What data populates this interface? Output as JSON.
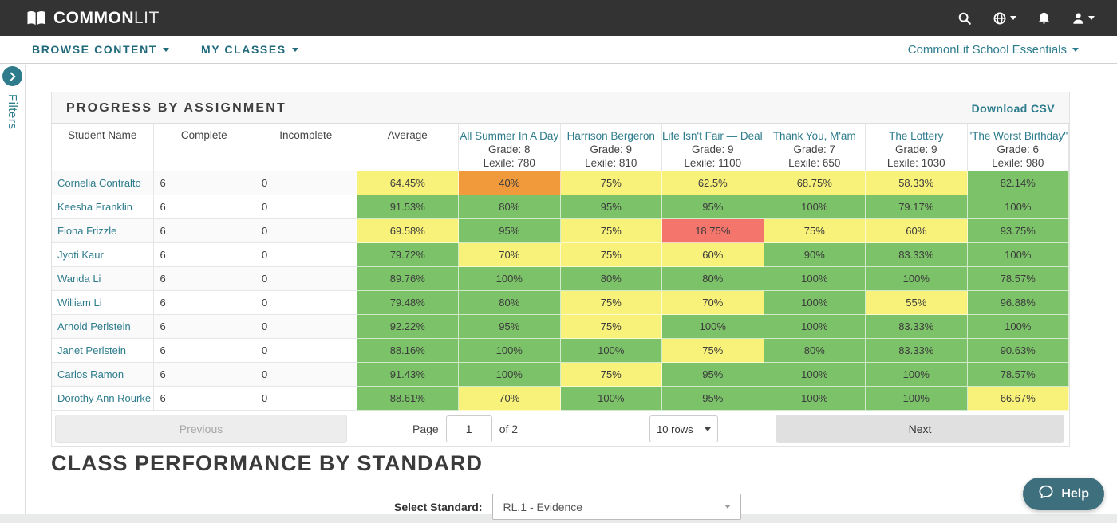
{
  "topbar": {
    "logo_common": "COMMON",
    "logo_lit": "LIT"
  },
  "nav": {
    "browse": "BROWSE CONTENT",
    "classes": "MY CLASSES",
    "school": "CommonLit School Essentials"
  },
  "filters": {
    "label": "Filters"
  },
  "panel": {
    "title": "PROGRESS BY ASSIGNMENT",
    "download_csv": "Download CSV",
    "table": {
      "static_headers": [
        "Student Name",
        "Complete",
        "Incomplete",
        "Average"
      ],
      "assignments": [
        {
          "title": "All Summer In A Day",
          "grade": "Grade:  8",
          "lexile": "Lexile:  780"
        },
        {
          "title": "Harrison Bergeron",
          "grade": "Grade:  9",
          "lexile": "Lexile:  810"
        },
        {
          "title": "Life Isn't Fair — Deal V",
          "grade": "Grade:  9",
          "lexile": "Lexile:  1100"
        },
        {
          "title": "Thank You, M'am",
          "grade": "Grade:  7",
          "lexile": "Lexile:  650"
        },
        {
          "title": "The Lottery",
          "grade": "Grade:  9",
          "lexile": "Lexile:  1030"
        },
        {
          "title": "\"The Worst Birthday\"",
          "grade": "Grade:  6",
          "lexile": "Lexile:  980"
        }
      ],
      "rows": [
        {
          "name": "Cornelia Contralto",
          "complete": "6",
          "incomplete": "0",
          "average": {
            "value": "64.45%",
            "color": "yellow"
          },
          "scores": [
            {
              "value": "40%",
              "color": "orange"
            },
            {
              "value": "75%",
              "color": "yellow"
            },
            {
              "value": "62.5%",
              "color": "yellow"
            },
            {
              "value": "68.75%",
              "color": "yellow"
            },
            {
              "value": "58.33%",
              "color": "yellow"
            },
            {
              "value": "82.14%",
              "color": "green"
            }
          ]
        },
        {
          "name": "Keesha Franklin",
          "complete": "6",
          "incomplete": "0",
          "average": {
            "value": "91.53%",
            "color": "green"
          },
          "scores": [
            {
              "value": "80%",
              "color": "green"
            },
            {
              "value": "95%",
              "color": "green"
            },
            {
              "value": "95%",
              "color": "green"
            },
            {
              "value": "100%",
              "color": "green"
            },
            {
              "value": "79.17%",
              "color": "green"
            },
            {
              "value": "100%",
              "color": "green"
            }
          ]
        },
        {
          "name": "Fiona Frizzle",
          "complete": "6",
          "incomplete": "0",
          "average": {
            "value": "69.58%",
            "color": "yellow"
          },
          "scores": [
            {
              "value": "95%",
              "color": "green"
            },
            {
              "value": "75%",
              "color": "yellow"
            },
            {
              "value": "18.75%",
              "color": "red"
            },
            {
              "value": "75%",
              "color": "yellow"
            },
            {
              "value": "60%",
              "color": "yellow"
            },
            {
              "value": "93.75%",
              "color": "green"
            }
          ]
        },
        {
          "name": "Jyoti Kaur",
          "complete": "6",
          "incomplete": "0",
          "average": {
            "value": "79.72%",
            "color": "green"
          },
          "scores": [
            {
              "value": "70%",
              "color": "yellow"
            },
            {
              "value": "75%",
              "color": "yellow"
            },
            {
              "value": "60%",
              "color": "yellow"
            },
            {
              "value": "90%",
              "color": "green"
            },
            {
              "value": "83.33%",
              "color": "green"
            },
            {
              "value": "100%",
              "color": "green"
            }
          ]
        },
        {
          "name": "Wanda Li",
          "complete": "6",
          "incomplete": "0",
          "average": {
            "value": "89.76%",
            "color": "green"
          },
          "scores": [
            {
              "value": "100%",
              "color": "green"
            },
            {
              "value": "80%",
              "color": "green"
            },
            {
              "value": "80%",
              "color": "green"
            },
            {
              "value": "100%",
              "color": "green"
            },
            {
              "value": "100%",
              "color": "green"
            },
            {
              "value": "78.57%",
              "color": "green"
            }
          ]
        },
        {
          "name": "William Li",
          "complete": "6",
          "incomplete": "0",
          "average": {
            "value": "79.48%",
            "color": "green"
          },
          "scores": [
            {
              "value": "80%",
              "color": "green"
            },
            {
              "value": "75%",
              "color": "yellow"
            },
            {
              "value": "70%",
              "color": "yellow"
            },
            {
              "value": "100%",
              "color": "green"
            },
            {
              "value": "55%",
              "color": "yellow"
            },
            {
              "value": "96.88%",
              "color": "green"
            }
          ]
        },
        {
          "name": "Arnold Perlstein",
          "complete": "6",
          "incomplete": "0",
          "average": {
            "value": "92.22%",
            "color": "green"
          },
          "scores": [
            {
              "value": "95%",
              "color": "green"
            },
            {
              "value": "75%",
              "color": "yellow"
            },
            {
              "value": "100%",
              "color": "green"
            },
            {
              "value": "100%",
              "color": "green"
            },
            {
              "value": "83.33%",
              "color": "green"
            },
            {
              "value": "100%",
              "color": "green"
            }
          ]
        },
        {
          "name": "Janet Perlstein",
          "complete": "6",
          "incomplete": "0",
          "average": {
            "value": "88.16%",
            "color": "green"
          },
          "scores": [
            {
              "value": "100%",
              "color": "green"
            },
            {
              "value": "100%",
              "color": "green"
            },
            {
              "value": "75%",
              "color": "yellow"
            },
            {
              "value": "80%",
              "color": "green"
            },
            {
              "value": "83.33%",
              "color": "green"
            },
            {
              "value": "90.63%",
              "color": "green"
            }
          ]
        },
        {
          "name": "Carlos Ramon",
          "complete": "6",
          "incomplete": "0",
          "average": {
            "value": "91.43%",
            "color": "green"
          },
          "scores": [
            {
              "value": "100%",
              "color": "green"
            },
            {
              "value": "75%",
              "color": "yellow"
            },
            {
              "value": "95%",
              "color": "green"
            },
            {
              "value": "100%",
              "color": "green"
            },
            {
              "value": "100%",
              "color": "green"
            },
            {
              "value": "78.57%",
              "color": "green"
            }
          ]
        },
        {
          "name": "Dorothy Ann Rourke",
          "complete": "6",
          "incomplete": "0",
          "average": {
            "value": "88.61%",
            "color": "green"
          },
          "scores": [
            {
              "value": "70%",
              "color": "yellow"
            },
            {
              "value": "100%",
              "color": "green"
            },
            {
              "value": "95%",
              "color": "green"
            },
            {
              "value": "100%",
              "color": "green"
            },
            {
              "value": "100%",
              "color": "green"
            },
            {
              "value": "66.67%",
              "color": "yellow"
            }
          ]
        }
      ]
    },
    "pagination": {
      "previous": "Previous",
      "page_label": "Page",
      "page_value": "1",
      "of_label": "of 2",
      "rows_per_page": "10 rows",
      "next": "Next"
    }
  },
  "section2": {
    "title": "CLASS PERFORMANCE BY STANDARD",
    "select_label": "Select Standard:",
    "select_value": "RL.1 - Evidence"
  },
  "help": {
    "label": "Help"
  },
  "colors": {
    "green": "#7cc269",
    "yellow": "#f8f17a",
    "orange": "#f09a3c",
    "red": "#f4756b",
    "teal": "#2d7c8d"
  }
}
